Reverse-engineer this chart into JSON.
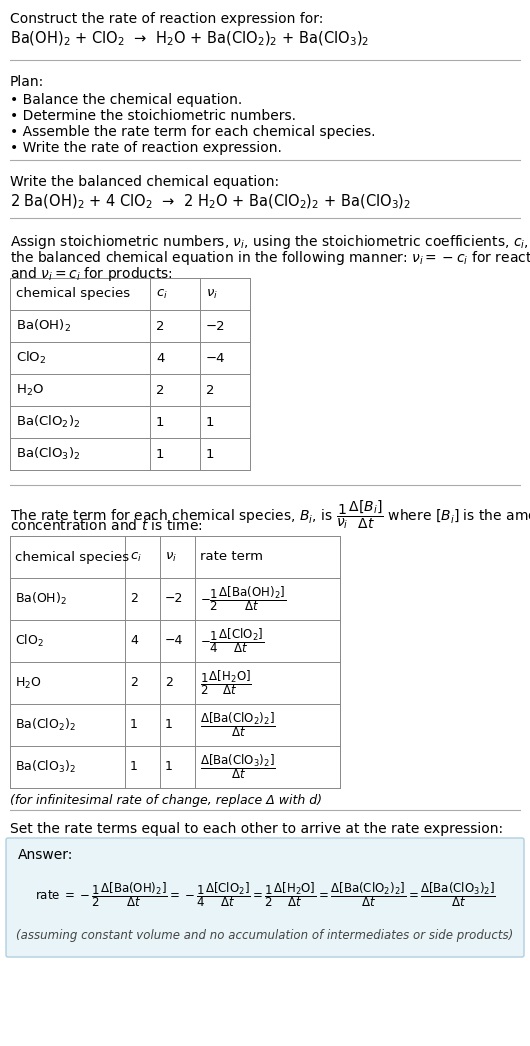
{
  "bg_color": "#ffffff",
  "text_color": "#000000",
  "section1_title": "Construct the rate of reaction expression for:",
  "section1_eq": "Ba(OH)$_2$ + ClO$_2$  →  H$_2$O + Ba(ClO$_2$)$_2$ + Ba(ClO$_3$)$_2$",
  "plan_title": "Plan:",
  "plan_items": [
    "• Balance the chemical equation.",
    "• Determine the stoichiometric numbers.",
    "• Assemble the rate term for each chemical species.",
    "• Write the rate of reaction expression."
  ],
  "balanced_title": "Write the balanced chemical equation:",
  "balanced_eq": "2 Ba(OH)$_2$ + 4 ClO$_2$  →  2 H$_2$O + Ba(ClO$_2$)$_2$ + Ba(ClO$_3$)$_2$",
  "stoich_text1": "Assign stoichiometric numbers, $\\nu_i$, using the stoichiometric coefficients, $c_i$, from",
  "stoich_text2": "the balanced chemical equation in the following manner: $\\nu_i = -c_i$ for reactants",
  "stoich_text3": "and $\\nu_i = c_i$ for products:",
  "table1_headers": [
    "chemical species",
    "$c_i$",
    "$\\nu_i$"
  ],
  "table1_rows": [
    [
      "Ba(OH)$_2$",
      "2",
      "−2"
    ],
    [
      "ClO$_2$",
      "4",
      "−4"
    ],
    [
      "H$_2$O",
      "2",
      "2"
    ],
    [
      "Ba(ClO$_2$)$_2$",
      "1",
      "1"
    ],
    [
      "Ba(ClO$_3$)$_2$",
      "1",
      "1"
    ]
  ],
  "rate_text1": "The rate term for each chemical species, $B_i$, is $\\dfrac{1}{\\nu_i}\\dfrac{\\Delta[B_i]}{\\Delta t}$ where $[B_i]$ is the amount",
  "rate_text2": "concentration and $t$ is time:",
  "table2_headers": [
    "chemical species",
    "$c_i$",
    "$\\nu_i$",
    "rate term"
  ],
  "table2_rows": [
    [
      "Ba(OH)$_2$",
      "2",
      "−2",
      "$-\\dfrac{1}{2}\\dfrac{\\Delta[\\mathrm{Ba(OH)_2}]}{\\Delta t}$"
    ],
    [
      "ClO$_2$",
      "4",
      "−4",
      "$-\\dfrac{1}{4}\\dfrac{\\Delta[\\mathrm{ClO_2}]}{\\Delta t}$"
    ],
    [
      "H$_2$O",
      "2",
      "2",
      "$\\dfrac{1}{2}\\dfrac{\\Delta[\\mathrm{H_2O}]}{\\Delta t}$"
    ],
    [
      "Ba(ClO$_2$)$_2$",
      "1",
      "1",
      "$\\dfrac{\\Delta[\\mathrm{Ba(ClO_2)_2}]}{\\Delta t}$"
    ],
    [
      "Ba(ClO$_3$)$_2$",
      "1",
      "1",
      "$\\dfrac{\\Delta[\\mathrm{Ba(ClO_3)_2}]}{\\Delta t}$"
    ]
  ],
  "infinitesimal_note": "(for infinitesimal rate of change, replace Δ with d)",
  "set_rate_text": "Set the rate terms equal to each other to arrive at the rate expression:",
  "answer_box_color": "#e8f4f8",
  "answer_box_border": "#b0cfe0",
  "answer_label": "Answer:",
  "answer_rate": "rate $= -\\dfrac{1}{2}\\dfrac{\\Delta[\\mathrm{Ba(OH)_2}]}{\\Delta t} = -\\dfrac{1}{4}\\dfrac{\\Delta[\\mathrm{ClO_2}]}{\\Delta t} = \\dfrac{1}{2}\\dfrac{\\Delta[\\mathrm{H_2O}]}{\\Delta t} = \\dfrac{\\Delta[\\mathrm{Ba(ClO_2)_2}]}{\\Delta t} = \\dfrac{\\Delta[\\mathrm{Ba(ClO_3)_2}]}{\\Delta t}$",
  "answer_note": "(assuming constant volume and no accumulation of intermediates or side products)"
}
